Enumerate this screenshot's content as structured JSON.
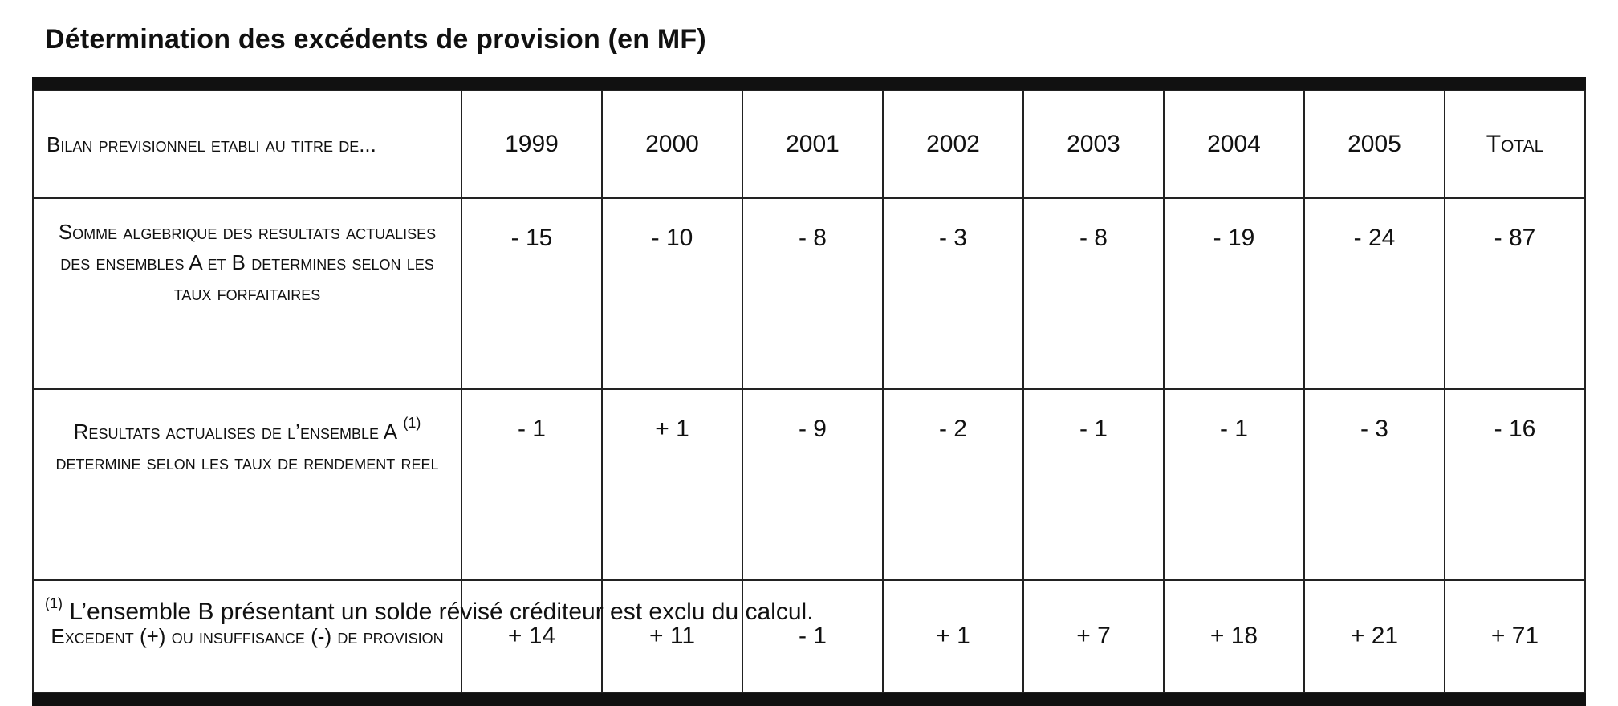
{
  "title": "Détermination des excédents de provision (en MF)",
  "table": {
    "header": {
      "label": "Bilan previsionnel etabli au titre de...",
      "columns": [
        "1999",
        "2000",
        "2001",
        "2002",
        "2003",
        "2004",
        "2005",
        "Total"
      ]
    },
    "rows": [
      {
        "label_before": "Somme algebrique des resultats actualises des ensembles A et B determines selon les taux forfaitaires",
        "label_sup": "",
        "label_after": "",
        "values": [
          "- 15",
          "- 10",
          "- 8",
          "- 3",
          "- 8",
          "- 19",
          "- 24",
          "- 87"
        ]
      },
      {
        "label_before": "Resultats actualises de l’ensemble A",
        "label_sup": "(1)",
        "label_after": " determine selon les taux de rendement reel",
        "values": [
          "- 1",
          "+ 1",
          "- 9",
          "- 2",
          "- 1",
          "- 1",
          "- 3",
          "- 16"
        ]
      },
      {
        "label_before": "Excedent (+) ou insuffisance (-) de provision",
        "label_sup": "",
        "label_after": "",
        "values": [
          "+ 14",
          "+ 11",
          "- 1",
          "+ 1",
          "+ 7",
          "+ 18",
          "+ 21",
          "+ 71"
        ]
      }
    ]
  },
  "footnote": {
    "marker": "(1)",
    "text": " L’ensemble B présentant un solde révisé créditeur est exclu du calcul."
  }
}
